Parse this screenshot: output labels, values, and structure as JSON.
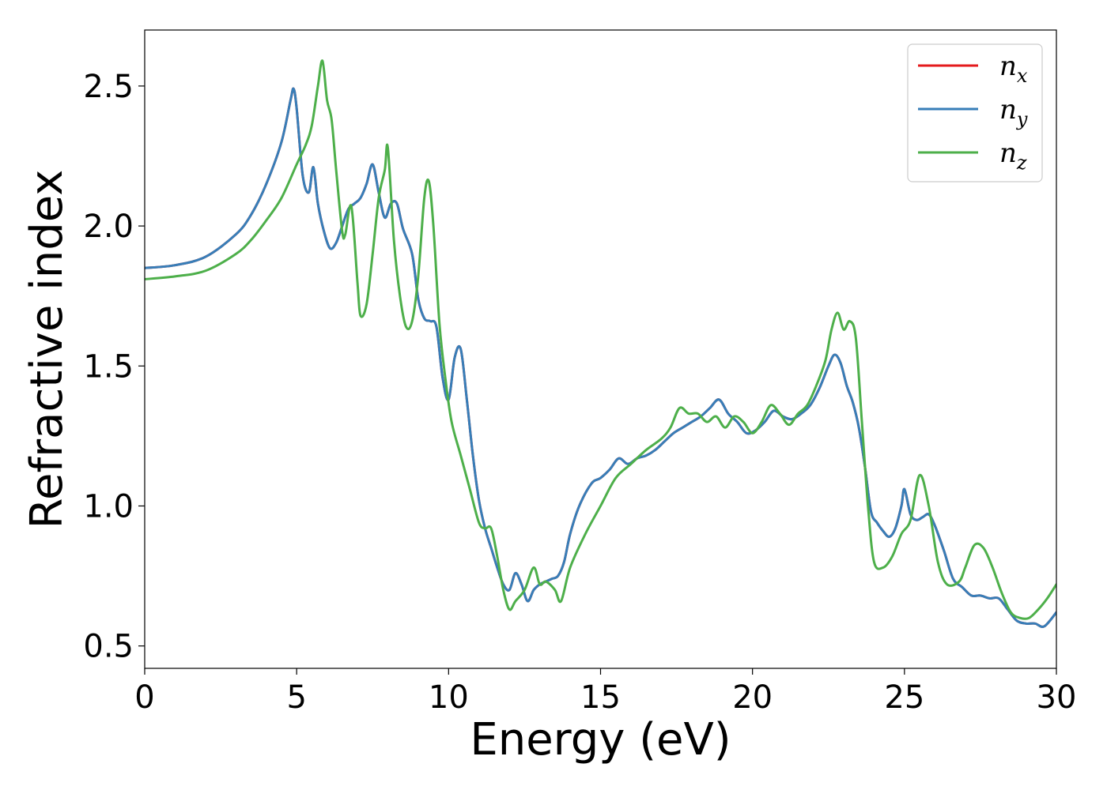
{
  "chart_data": {
    "type": "line",
    "title": "",
    "xlabel": "Energy (eV)",
    "ylabel": "Refractive index",
    "xlim": [
      0,
      30
    ],
    "ylim": [
      0.42,
      2.7
    ],
    "xticks": [
      0,
      5,
      10,
      15,
      20,
      25,
      30
    ],
    "xtick_labels": [
      "0",
      "5",
      "10",
      "15",
      "20",
      "25",
      "30"
    ],
    "yticks": [
      0.5,
      1.0,
      1.5,
      2.0,
      2.5
    ],
    "ytick_labels": [
      "0.5",
      "1.0",
      "1.5",
      "2.0",
      "2.5"
    ],
    "grid": false,
    "legend_position": "top-right",
    "series": [
      {
        "name": "n_x",
        "label_base": "n",
        "label_sub": "x",
        "color": "#e41a1c",
        "x": [
          0,
          1,
          2,
          3,
          3.5,
          4,
          4.5,
          4.8,
          4.9,
          5.0,
          5.2,
          5.4,
          5.55,
          5.7,
          5.9,
          6.1,
          6.3,
          6.5,
          6.7,
          6.9,
          7.1,
          7.3,
          7.5,
          7.7,
          7.9,
          8.1,
          8.3,
          8.5,
          8.8,
          9.0,
          9.2,
          9.4,
          9.6,
          9.8,
          10.0,
          10.2,
          10.4,
          10.6,
          10.8,
          11.0,
          11.2,
          11.4,
          11.6,
          11.8,
          12.0,
          12.2,
          12.4,
          12.6,
          12.8,
          13.0,
          13.2,
          13.4,
          13.6,
          13.8,
          14.0,
          14.3,
          14.7,
          15.0,
          15.3,
          15.6,
          15.9,
          16.2,
          16.5,
          16.8,
          17.1,
          17.4,
          17.7,
          18.0,
          18.3,
          18.6,
          18.9,
          19.2,
          19.5,
          19.8,
          20.1,
          20.4,
          20.7,
          21.0,
          21.3,
          21.6,
          21.9,
          22.2,
          22.5,
          22.7,
          22.9,
          23.1,
          23.3,
          23.5,
          23.7,
          23.9,
          24.1,
          24.3,
          24.5,
          24.7,
          24.9,
          25.0,
          25.2,
          25.4,
          25.6,
          25.8,
          26.0,
          26.3,
          26.6,
          26.9,
          27.2,
          27.5,
          27.8,
          28.1,
          28.4,
          28.7,
          29.0,
          29.3,
          29.6,
          30.0
        ],
        "y": [
          1.85,
          1.86,
          1.89,
          1.97,
          2.04,
          2.15,
          2.3,
          2.45,
          2.49,
          2.42,
          2.18,
          2.12,
          2.21,
          2.08,
          1.98,
          1.92,
          1.94,
          2.0,
          2.06,
          2.08,
          2.1,
          2.15,
          2.22,
          2.12,
          2.03,
          2.08,
          2.08,
          1.99,
          1.9,
          1.74,
          1.67,
          1.66,
          1.64,
          1.46,
          1.38,
          1.53,
          1.56,
          1.38,
          1.18,
          1.02,
          0.92,
          0.85,
          0.78,
          0.72,
          0.7,
          0.76,
          0.72,
          0.66,
          0.7,
          0.72,
          0.73,
          0.74,
          0.75,
          0.8,
          0.9,
          1.0,
          1.08,
          1.1,
          1.13,
          1.17,
          1.15,
          1.17,
          1.18,
          1.2,
          1.23,
          1.26,
          1.28,
          1.3,
          1.32,
          1.35,
          1.38,
          1.33,
          1.3,
          1.26,
          1.27,
          1.3,
          1.34,
          1.32,
          1.31,
          1.33,
          1.36,
          1.42,
          1.5,
          1.54,
          1.51,
          1.43,
          1.37,
          1.28,
          1.14,
          0.98,
          0.94,
          0.91,
          0.89,
          0.92,
          1.0,
          1.06,
          0.97,
          0.95,
          0.96,
          0.97,
          0.93,
          0.84,
          0.74,
          0.71,
          0.68,
          0.68,
          0.67,
          0.67,
          0.63,
          0.59,
          0.58,
          0.58,
          0.57,
          0.62
        ]
      },
      {
        "name": "n_y",
        "label_base": "n",
        "label_sub": "y",
        "color": "#377eb8",
        "x": [
          0,
          1,
          2,
          3,
          3.5,
          4,
          4.5,
          4.8,
          4.9,
          5.0,
          5.2,
          5.4,
          5.55,
          5.7,
          5.9,
          6.1,
          6.3,
          6.5,
          6.7,
          6.9,
          7.1,
          7.3,
          7.5,
          7.7,
          7.9,
          8.1,
          8.3,
          8.5,
          8.8,
          9.0,
          9.2,
          9.4,
          9.6,
          9.8,
          10.0,
          10.2,
          10.4,
          10.6,
          10.8,
          11.0,
          11.2,
          11.4,
          11.6,
          11.8,
          12.0,
          12.2,
          12.4,
          12.6,
          12.8,
          13.0,
          13.2,
          13.4,
          13.6,
          13.8,
          14.0,
          14.3,
          14.7,
          15.0,
          15.3,
          15.6,
          15.9,
          16.2,
          16.5,
          16.8,
          17.1,
          17.4,
          17.7,
          18.0,
          18.3,
          18.6,
          18.9,
          19.2,
          19.5,
          19.8,
          20.1,
          20.4,
          20.7,
          21.0,
          21.3,
          21.6,
          21.9,
          22.2,
          22.5,
          22.7,
          22.9,
          23.1,
          23.3,
          23.5,
          23.7,
          23.9,
          24.1,
          24.3,
          24.5,
          24.7,
          24.9,
          25.0,
          25.2,
          25.4,
          25.6,
          25.8,
          26.0,
          26.3,
          26.6,
          26.9,
          27.2,
          27.5,
          27.8,
          28.1,
          28.4,
          28.7,
          29.0,
          29.3,
          29.6,
          30.0
        ],
        "y": [
          1.85,
          1.86,
          1.89,
          1.97,
          2.04,
          2.15,
          2.3,
          2.45,
          2.49,
          2.42,
          2.18,
          2.12,
          2.21,
          2.08,
          1.98,
          1.92,
          1.94,
          2.0,
          2.06,
          2.08,
          2.1,
          2.15,
          2.22,
          2.12,
          2.03,
          2.08,
          2.08,
          1.99,
          1.9,
          1.74,
          1.67,
          1.66,
          1.64,
          1.46,
          1.38,
          1.53,
          1.56,
          1.38,
          1.18,
          1.02,
          0.92,
          0.85,
          0.78,
          0.72,
          0.7,
          0.76,
          0.72,
          0.66,
          0.7,
          0.72,
          0.73,
          0.74,
          0.75,
          0.8,
          0.9,
          1.0,
          1.08,
          1.1,
          1.13,
          1.17,
          1.15,
          1.17,
          1.18,
          1.2,
          1.23,
          1.26,
          1.28,
          1.3,
          1.32,
          1.35,
          1.38,
          1.33,
          1.3,
          1.26,
          1.27,
          1.3,
          1.34,
          1.32,
          1.31,
          1.33,
          1.36,
          1.42,
          1.5,
          1.54,
          1.51,
          1.43,
          1.37,
          1.28,
          1.14,
          0.98,
          0.94,
          0.91,
          0.89,
          0.92,
          1.0,
          1.06,
          0.97,
          0.95,
          0.96,
          0.97,
          0.93,
          0.84,
          0.74,
          0.71,
          0.68,
          0.68,
          0.67,
          0.67,
          0.63,
          0.59,
          0.58,
          0.58,
          0.57,
          0.62
        ]
      },
      {
        "name": "n_z",
        "label_base": "n",
        "label_sub": "z",
        "color": "#4daf4a",
        "x": [
          0,
          1,
          2,
          3,
          3.5,
          4,
          4.5,
          5.0,
          5.3,
          5.5,
          5.7,
          5.85,
          6.0,
          6.15,
          6.3,
          6.5,
          6.6,
          6.8,
          7.0,
          7.1,
          7.3,
          7.5,
          7.7,
          7.9,
          8.0,
          8.2,
          8.4,
          8.6,
          8.8,
          9.0,
          9.2,
          9.35,
          9.5,
          9.7,
          9.9,
          10.1,
          10.4,
          10.7,
          11.0,
          11.2,
          11.4,
          11.6,
          11.8,
          12.0,
          12.2,
          12.5,
          12.8,
          13.0,
          13.2,
          13.5,
          13.7,
          14.0,
          14.5,
          15.0,
          15.5,
          16.0,
          16.5,
          17.0,
          17.3,
          17.6,
          17.9,
          18.2,
          18.5,
          18.8,
          19.1,
          19.4,
          19.7,
          20.0,
          20.3,
          20.6,
          20.9,
          21.2,
          21.5,
          21.8,
          22.1,
          22.4,
          22.6,
          22.8,
          23.0,
          23.2,
          23.4,
          23.6,
          23.8,
          24.0,
          24.3,
          24.6,
          24.9,
          25.2,
          25.5,
          25.8,
          26.1,
          26.4,
          26.8,
          27.0,
          27.3,
          27.6,
          27.9,
          28.2,
          28.5,
          28.8,
          29.1,
          29.4,
          29.7,
          30.0
        ],
        "y": [
          1.81,
          1.82,
          1.84,
          1.9,
          1.95,
          2.02,
          2.1,
          2.22,
          2.29,
          2.36,
          2.5,
          2.59,
          2.45,
          2.38,
          2.2,
          1.98,
          1.97,
          2.07,
          1.8,
          1.68,
          1.72,
          1.9,
          2.1,
          2.2,
          2.28,
          1.95,
          1.75,
          1.64,
          1.66,
          1.82,
          2.1,
          2.16,
          2.0,
          1.65,
          1.45,
          1.3,
          1.18,
          1.06,
          0.94,
          0.92,
          0.92,
          0.82,
          0.7,
          0.63,
          0.66,
          0.7,
          0.78,
          0.72,
          0.73,
          0.7,
          0.66,
          0.78,
          0.9,
          1.0,
          1.1,
          1.15,
          1.2,
          1.24,
          1.28,
          1.35,
          1.33,
          1.33,
          1.3,
          1.32,
          1.28,
          1.32,
          1.3,
          1.26,
          1.3,
          1.36,
          1.33,
          1.29,
          1.33,
          1.36,
          1.43,
          1.52,
          1.63,
          1.69,
          1.63,
          1.66,
          1.6,
          1.3,
          1.0,
          0.8,
          0.78,
          0.82,
          0.9,
          0.95,
          1.11,
          1.0,
          0.8,
          0.72,
          0.73,
          0.78,
          0.86,
          0.85,
          0.78,
          0.69,
          0.62,
          0.6,
          0.6,
          0.63,
          0.67,
          0.72
        ]
      }
    ]
  }
}
